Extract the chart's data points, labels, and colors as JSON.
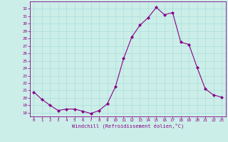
{
  "x": [
    0,
    1,
    2,
    3,
    4,
    5,
    6,
    7,
    8,
    9,
    10,
    11,
    12,
    13,
    14,
    15,
    16,
    17,
    18,
    19,
    20,
    21,
    22,
    23
  ],
  "y": [
    20.8,
    19.8,
    19.0,
    18.3,
    18.5,
    18.5,
    18.2,
    17.9,
    18.3,
    19.2,
    21.5,
    25.3,
    28.2,
    29.8,
    30.8,
    32.2,
    31.2,
    31.5,
    27.5,
    27.2,
    24.1,
    21.2,
    20.4,
    20.1
  ],
  "line_color": "#880088",
  "marker": "D",
  "marker_size": 2.0,
  "bg_color": "#cceee8",
  "grid_color": "#aadddd",
  "xlabel": "Windchill (Refroidissement éolien,°C)",
  "ylim": [
    17.5,
    33.0
  ],
  "xlim": [
    -0.5,
    23.5
  ],
  "yticks": [
    18,
    19,
    20,
    21,
    22,
    23,
    24,
    25,
    26,
    27,
    28,
    29,
    30,
    31,
    32
  ],
  "xticks": [
    0,
    1,
    2,
    3,
    4,
    5,
    6,
    7,
    8,
    9,
    10,
    11,
    12,
    13,
    14,
    15,
    16,
    17,
    18,
    19,
    20,
    21,
    22,
    23
  ]
}
